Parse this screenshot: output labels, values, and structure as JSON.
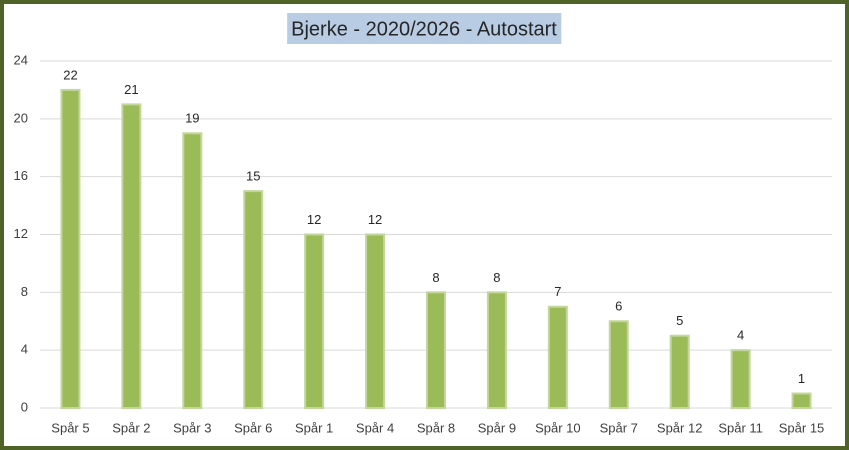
{
  "chart_data": {
    "type": "bar",
    "title": "Bjerke - 2020/2026 - Autostart",
    "categories": [
      "Spår 5",
      "Spår 2",
      "Spår 3",
      "Spår 6",
      "Spår 1",
      "Spår 4",
      "Spår 8",
      "Spår 9",
      "Spår 10",
      "Spår 7",
      "Spår 12",
      "Spår 11",
      "Spår 15"
    ],
    "values": [
      22,
      21,
      19,
      15,
      12,
      12,
      8,
      8,
      7,
      6,
      5,
      4,
      1
    ],
    "color": "#9bbb59",
    "ylim": [
      0,
      24
    ],
    "yticks": [
      0,
      4,
      8,
      12,
      16,
      20,
      24
    ],
    "grid": true
  }
}
